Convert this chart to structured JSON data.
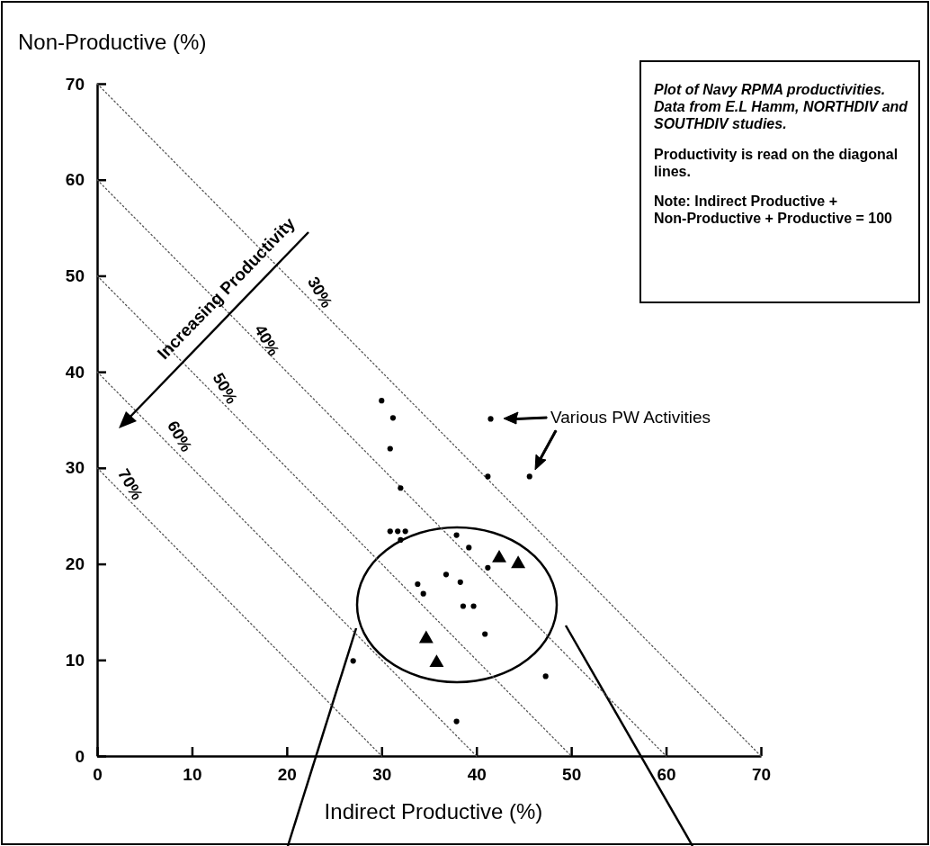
{
  "chart_data": {
    "type": "scatter",
    "xlabel": "Indirect Productive (%)",
    "ylabel": "Non-Productive (%)",
    "xlim": [
      0,
      70
    ],
    "ylim": [
      0,
      70
    ],
    "xticks": [
      0,
      10,
      20,
      30,
      40,
      50,
      60,
      70
    ],
    "yticks": [
      0,
      10,
      20,
      30,
      40,
      50,
      60,
      70
    ],
    "grid": false,
    "series": [
      {
        "type": "line",
        "name": "30%",
        "color": "#555555",
        "line_style": "dotted",
        "marker": "none",
        "x": [
          0,
          70
        ],
        "values": [
          70,
          0
        ]
      },
      {
        "type": "line",
        "name": "40%",
        "color": "#555555",
        "line_style": "dotted",
        "marker": "none",
        "x": [
          0,
          60
        ],
        "values": [
          60,
          0
        ]
      },
      {
        "type": "line",
        "name": "50%",
        "color": "#555555",
        "line_style": "dotted",
        "marker": "none",
        "x": [
          0,
          50
        ],
        "values": [
          50,
          0
        ]
      },
      {
        "type": "line",
        "name": "60%",
        "color": "#555555",
        "line_style": "dotted",
        "marker": "none",
        "x": [
          0,
          40
        ],
        "values": [
          40,
          0
        ]
      },
      {
        "type": "line",
        "name": "70%",
        "color": "#555555",
        "line_style": "dotted",
        "marker": "none",
        "x": [
          0,
          30
        ],
        "values": [
          30,
          0
        ]
      },
      {
        "type": "scatter",
        "color": "#000000",
        "marker": "circle",
        "x": [
          30.0,
          31.2,
          30.9,
          32.0,
          41.5,
          41.2,
          45.6,
          30.9,
          31.7,
          32.5,
          32.0,
          37.9,
          39.2,
          41.2,
          36.8,
          38.3,
          33.8,
          34.4,
          38.6,
          39.7,
          40.9,
          27.0,
          47.3,
          37.9
        ],
        "values": [
          37.0,
          35.2,
          32.0,
          27.9,
          35.1,
          29.1,
          29.1,
          23.4,
          23.4,
          23.4,
          22.5,
          23.0,
          21.7,
          19.6,
          18.9,
          18.1,
          17.9,
          16.9,
          15.6,
          15.6,
          12.7,
          9.9,
          8.3,
          3.6
        ]
      },
      {
        "type": "scatter",
        "color": "#000000",
        "marker": "triangle",
        "x": [
          42.4,
          44.4,
          34.7,
          35.8
        ],
        "values": [
          20.6,
          20.0,
          12.2,
          9.7
        ]
      }
    ],
    "annotations": [
      "Plot of Navy RPMA productivities. Data from E.L Hamm, NORTHDIV and SOUTHDIV studies.",
      "Productivity is read on the diagonal lines.",
      "Note: Indirect Productive + Non-Productive + Productive = 100",
      "Various PW Activities",
      "Increasing Productivity"
    ]
  }
}
